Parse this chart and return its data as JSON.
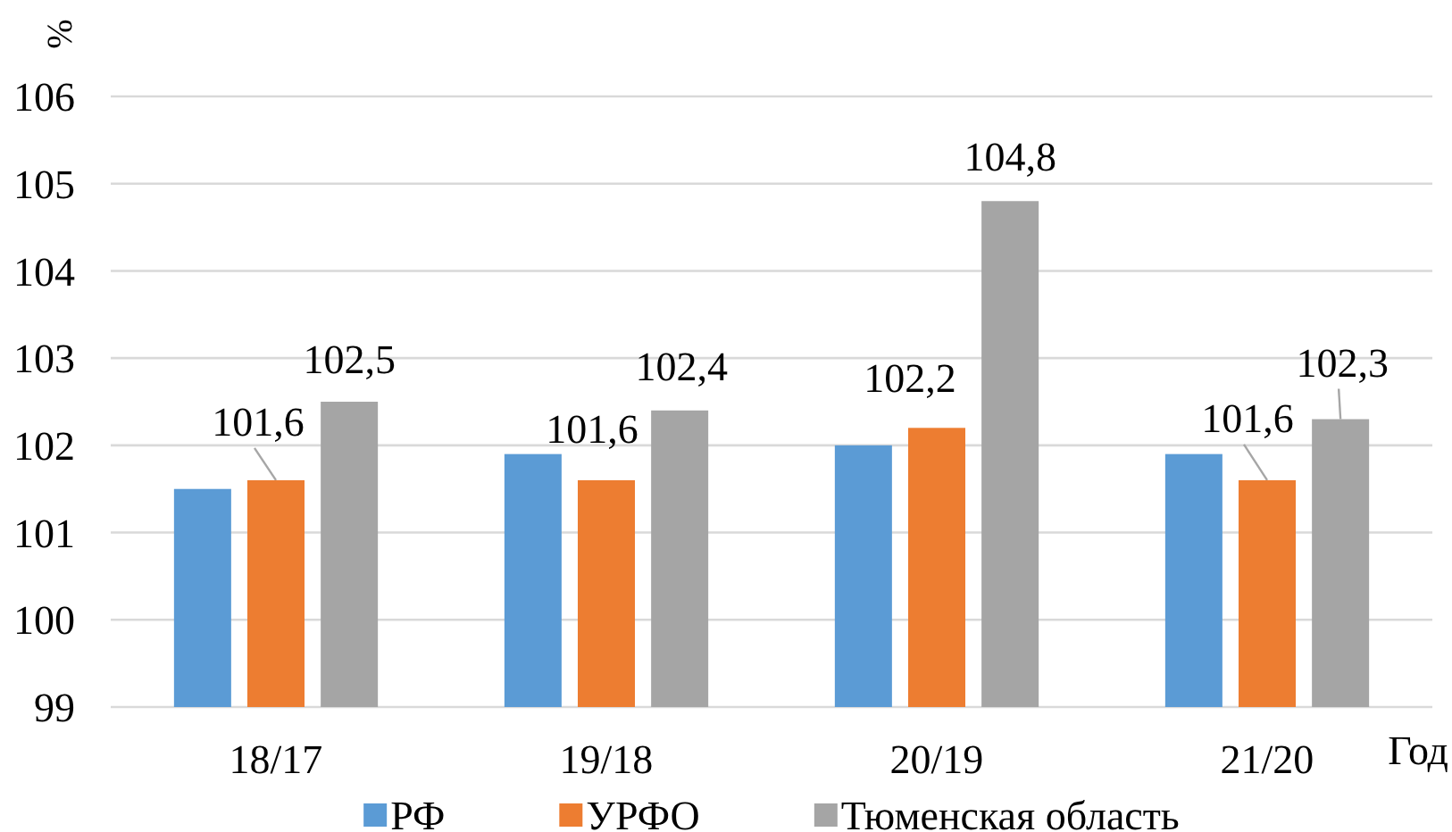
{
  "chart_data": {
    "type": "bar",
    "ylabel": "%",
    "xlabel": "Год",
    "categories": [
      "18/17",
      "19/18",
      "20/19",
      "21/20"
    ],
    "series": [
      {
        "name": "РФ",
        "color": "#5b9bd5",
        "values": [
          101.5,
          101.9,
          102.0,
          101.9
        ]
      },
      {
        "name": "УРФО",
        "color": "#ed7d31",
        "values": [
          101.6,
          101.6,
          102.2,
          101.6
        ],
        "value_labels": [
          "101,6",
          "101,6",
          "102,2",
          "101,6"
        ]
      },
      {
        "name": "Тюменская область",
        "color": "#a5a5a5",
        "values": [
          102.5,
          102.4,
          104.8,
          102.3
        ],
        "value_labels": [
          "102,5",
          "102,4",
          "104,8",
          "102,3"
        ]
      }
    ],
    "ylim": [
      99,
      106
    ],
    "yticks": [
      99,
      100,
      101,
      102,
      103,
      104,
      105,
      106
    ],
    "grid": "y",
    "legend": "bottom"
  }
}
